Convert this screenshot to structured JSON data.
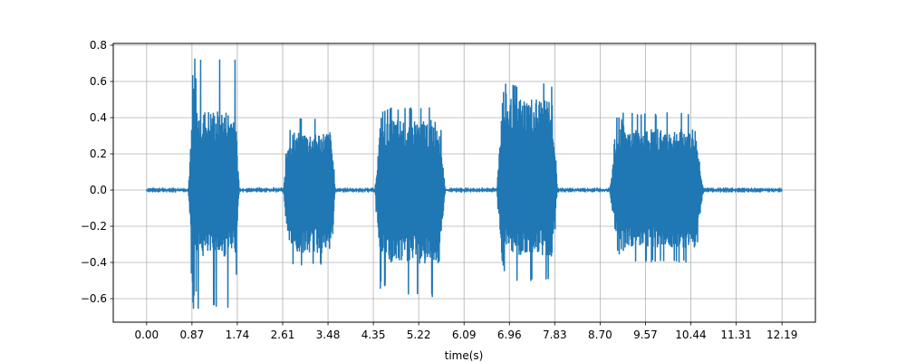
{
  "chart_data": {
    "type": "line",
    "title": "",
    "xlabel": "time(s)",
    "ylabel": "",
    "xlim": [
      -0.64,
      12.83
    ],
    "ylim": [
      -0.73,
      0.81
    ],
    "x_ticks": [
      "0.00",
      "0.87",
      "1.74",
      "2.61",
      "3.48",
      "4.35",
      "5.22",
      "6.09",
      "6.96",
      "7.83",
      "8.70",
      "9.57",
      "10.44",
      "11.31",
      "12.19"
    ],
    "x_tick_values": [
      0.0,
      0.87,
      1.74,
      2.61,
      3.48,
      4.35,
      5.22,
      6.09,
      6.96,
      7.83,
      8.7,
      9.57,
      10.44,
      11.31,
      12.19
    ],
    "y_ticks": [
      "−0.6",
      "−0.4",
      "−0.2",
      "0.0",
      "0.2",
      "0.4",
      "0.6",
      "0.8"
    ],
    "y_tick_values": [
      -0.6,
      -0.4,
      -0.2,
      0.0,
      0.2,
      0.4,
      0.6,
      0.8
    ],
    "grid": true,
    "color": "#1f77b4",
    "series": [
      {
        "segments": [
          {
            "x0": 0.8,
            "x1": 1.78,
            "max": 0.74,
            "min": -0.66,
            "level_pos": 0.45,
            "level_neg": -0.38
          },
          {
            "x0": 2.63,
            "x1": 3.62,
            "max": 0.4,
            "min": -0.42,
            "level_pos": 0.33,
            "level_neg": -0.36
          },
          {
            "x0": 4.38,
            "x1": 5.73,
            "max": 0.46,
            "min": -0.6,
            "level_pos": 0.4,
            "level_neg": -0.42
          },
          {
            "x0": 6.72,
            "x1": 7.88,
            "max": 0.59,
            "min": -0.51,
            "level_pos": 0.52,
            "level_neg": -0.38
          },
          {
            "x0": 8.88,
            "x1": 10.68,
            "max": 0.43,
            "min": -0.4,
            "level_pos": 0.35,
            "level_neg": -0.33
          }
        ],
        "silence_level": 0.004
      }
    ]
  }
}
